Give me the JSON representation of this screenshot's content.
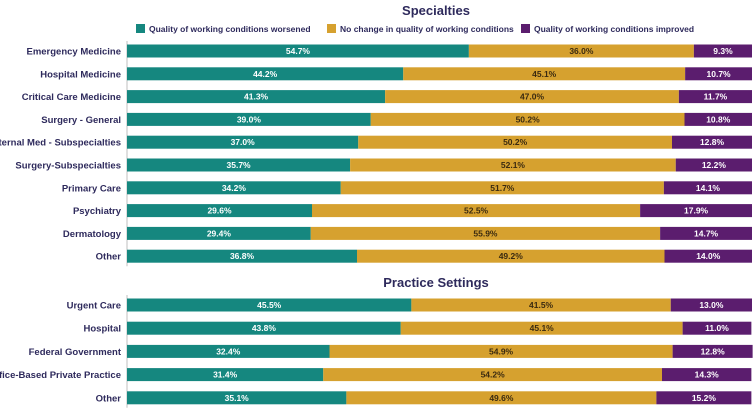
{
  "chart_data": [
    {
      "type": "bar",
      "orientation": "horizontal",
      "stacked": true,
      "title": "Specialties",
      "categories": [
        "Emergency Medicine",
        "Hospital Medicine",
        "Critical Care Medicine",
        "Surgery - General",
        "Internal Med - Subspecialties",
        "Surgery-Subspecialties",
        "Primary Care",
        "Psychiatry",
        "Dermatology",
        "Other"
      ],
      "series": [
        {
          "name": "Quality of working conditions worsened",
          "color": "#15877f",
          "values": [
            54.7,
            44.2,
            41.3,
            39.0,
            37.0,
            35.7,
            34.2,
            29.6,
            29.4,
            36.8
          ]
        },
        {
          "name": "No change in quality of working conditions",
          "color": "#d6a12f",
          "values": [
            36.0,
            45.1,
            47.0,
            50.2,
            50.2,
            52.1,
            51.7,
            52.5,
            55.9,
            49.2
          ]
        },
        {
          "name": "Quality of working conditions improved",
          "color": "#5b1d6e",
          "values": [
            9.3,
            10.7,
            11.7,
            10.8,
            12.8,
            12.2,
            14.1,
            17.9,
            14.7,
            14.0
          ]
        }
      ],
      "xlim": [
        0,
        100
      ],
      "legend": "top-center",
      "grid": false
    },
    {
      "type": "bar",
      "orientation": "horizontal",
      "stacked": true,
      "title": "Practice Settings",
      "categories": [
        "Urgent Care",
        "Hospital",
        "Federal Government",
        "Office-Based Private Practice",
        "Other"
      ],
      "series": [
        {
          "name": "Quality of working conditions worsened",
          "color": "#15877f",
          "values": [
            45.5,
            43.8,
            32.4,
            31.4,
            35.1
          ]
        },
        {
          "name": "No change in quality of working conditions",
          "color": "#d6a12f",
          "values": [
            41.5,
            45.1,
            54.9,
            54.2,
            49.6
          ]
        },
        {
          "name": "Quality of working conditions improved",
          "color": "#5b1d6e",
          "values": [
            13.0,
            11.0,
            12.8,
            14.3,
            15.2
          ]
        }
      ],
      "xlim": [
        0,
        100
      ],
      "grid": false
    }
  ],
  "legend": [
    {
      "label": "Quality of working conditions worsened",
      "color": "#15877f"
    },
    {
      "label": "No change in quality of working conditions",
      "color": "#d6a12f"
    },
    {
      "label": "Quality of working conditions improved",
      "color": "#5b1d6e"
    }
  ],
  "value_suffix": "%"
}
